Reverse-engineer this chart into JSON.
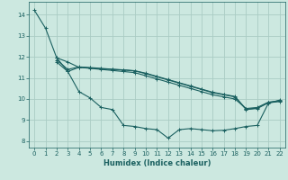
{
  "xlabel": "Humidex (Indice chaleur)",
  "bg_color": "#cce8e0",
  "grid_color": "#aaccc4",
  "line_color": "#1a6060",
  "xlim": [
    -0.5,
    22.5
  ],
  "ylim": [
    7.7,
    14.6
  ],
  "xticks": [
    0,
    1,
    2,
    3,
    4,
    5,
    6,
    7,
    8,
    9,
    10,
    11,
    12,
    13,
    14,
    15,
    16,
    17,
    18,
    19,
    20,
    21,
    22
  ],
  "yticks": [
    8,
    9,
    10,
    11,
    12,
    13,
    14
  ],
  "lines": [
    {
      "x": [
        0,
        1,
        2,
        3,
        4,
        5,
        6,
        7,
        8,
        9,
        10,
        11,
        12,
        13,
        14,
        15,
        16,
        17,
        18,
        19,
        20,
        21,
        22
      ],
      "y": [
        14.2,
        13.35,
        11.95,
        11.75,
        11.5,
        11.45,
        11.4,
        11.35,
        11.3,
        11.25,
        11.1,
        10.95,
        10.8,
        10.65,
        10.5,
        10.35,
        10.2,
        10.1,
        10.0,
        9.55,
        9.6,
        9.85,
        9.9
      ]
    },
    {
      "x": [
        2,
        3,
        4,
        5,
        6,
        7,
        8,
        9,
        10,
        11,
        12,
        13,
        14,
        15,
        16,
        17,
        18,
        19,
        20,
        21,
        22
      ],
      "y": [
        11.75,
        11.3,
        11.5,
        11.47,
        11.43,
        11.4,
        11.37,
        11.33,
        11.2,
        11.05,
        10.9,
        10.75,
        10.6,
        10.45,
        10.3,
        10.2,
        10.1,
        9.5,
        9.55,
        9.82,
        9.88
      ]
    },
    {
      "x": [
        2,
        3,
        4,
        5,
        6,
        7,
        8,
        9,
        10,
        11,
        12,
        13,
        14,
        15,
        16,
        17,
        18,
        19,
        20,
        21,
        22
      ],
      "y": [
        11.85,
        11.4,
        11.52,
        11.49,
        11.45,
        11.41,
        11.38,
        11.34,
        11.22,
        11.07,
        10.92,
        10.77,
        10.62,
        10.47,
        10.32,
        10.22,
        10.12,
        9.52,
        9.57,
        9.84,
        9.92
      ]
    },
    {
      "x": [
        2,
        3,
        4,
        5,
        6,
        7,
        8,
        9,
        10,
        11,
        12,
        13,
        14,
        15,
        16,
        17,
        18,
        19,
        20,
        21,
        22
      ],
      "y": [
        11.95,
        11.3,
        10.35,
        10.05,
        9.6,
        9.5,
        8.75,
        8.7,
        8.6,
        8.55,
        8.15,
        8.55,
        8.6,
        8.55,
        8.5,
        8.52,
        8.6,
        8.7,
        8.75,
        9.8,
        9.95
      ]
    }
  ]
}
